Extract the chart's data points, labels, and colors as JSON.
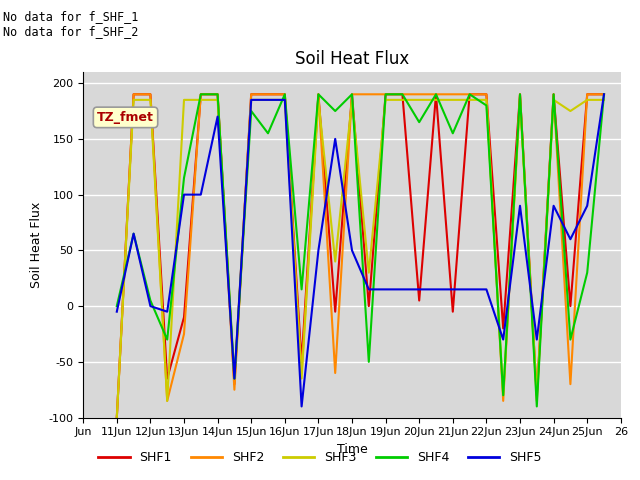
{
  "title": "Soil Heat Flux",
  "xlabel": "Time",
  "ylabel": "Soil Heat Flux",
  "ylim": [
    -100,
    210
  ],
  "yticks": [
    -100,
    -50,
    0,
    50,
    100,
    150,
    200
  ],
  "annotation_text": "No data for f_SHF_1\nNo data for f_SHF_2",
  "legend_label": "TZ_fmet",
  "background_color": "#d8d8d8",
  "series": {
    "SHF1": {
      "color": "#dd0000",
      "x": [
        11,
        11.5,
        12,
        12.5,
        13,
        13.5,
        14,
        14.5,
        15,
        15.5,
        16,
        16.5,
        17,
        17.5,
        18,
        18.5,
        19,
        19.5,
        20,
        20.5,
        21,
        21.5,
        22,
        22.5,
        23,
        23.5,
        24,
        24.5,
        25,
        25.5
      ],
      "y": [
        -100,
        190,
        190,
        -65,
        -10,
        190,
        190,
        -70,
        190,
        190,
        190,
        -50,
        190,
        -5,
        190,
        0,
        190,
        190,
        5,
        190,
        -5,
        190,
        190,
        -20,
        190,
        -80,
        190,
        0,
        190,
        190
      ]
    },
    "SHF2": {
      "color": "#ff8800",
      "x": [
        11,
        11.5,
        12,
        12.5,
        13,
        13.5,
        14,
        14.5,
        15,
        15.5,
        16,
        16.5,
        17,
        17.5,
        18,
        18.5,
        19,
        19.5,
        20,
        20.5,
        21,
        21.5,
        22,
        22.5,
        23,
        23.5,
        24,
        24.5,
        25,
        25.5
      ],
      "y": [
        -100,
        190,
        190,
        -85,
        -25,
        190,
        190,
        -75,
        190,
        190,
        190,
        -60,
        190,
        -60,
        190,
        190,
        190,
        190,
        190,
        190,
        190,
        190,
        190,
        -85,
        190,
        -85,
        190,
        -70,
        190,
        190
      ]
    },
    "SHF3": {
      "color": "#cccc00",
      "x": [
        11,
        11.5,
        12,
        12.5,
        13,
        13.5,
        14,
        14.5,
        15,
        15.5,
        16,
        16.5,
        17,
        17.5,
        18,
        18.5,
        19,
        19.5,
        20,
        20.5,
        21,
        21.5,
        22,
        22.5,
        23,
        23.5,
        24,
        24.5,
        25,
        25.5
      ],
      "y": [
        -100,
        185,
        185,
        -85,
        185,
        185,
        185,
        -65,
        185,
        185,
        185,
        -65,
        185,
        40,
        185,
        30,
        185,
        185,
        185,
        185,
        185,
        185,
        185,
        -80,
        185,
        -80,
        185,
        175,
        185,
        185
      ]
    },
    "SHF4": {
      "color": "#00cc00",
      "x": [
        11,
        11.5,
        12,
        12.5,
        13,
        13.5,
        14,
        14.5,
        15,
        15.5,
        16,
        16.5,
        17,
        17.5,
        18,
        18.5,
        19,
        19.5,
        20,
        20.5,
        21,
        21.5,
        22,
        22.5,
        23,
        23.5,
        24,
        24.5,
        25,
        25.5
      ],
      "y": [
        0,
        65,
        5,
        -30,
        115,
        190,
        190,
        -65,
        175,
        155,
        190,
        15,
        190,
        175,
        190,
        -50,
        190,
        190,
        165,
        190,
        155,
        190,
        180,
        -80,
        190,
        -90,
        190,
        -30,
        30,
        190
      ]
    },
    "SHF5": {
      "color": "#0000dd",
      "x": [
        11,
        11.5,
        12,
        12.5,
        13,
        13.5,
        14,
        14.5,
        15,
        15.5,
        16,
        16.5,
        17,
        17.5,
        18,
        18.5,
        19,
        19.5,
        20,
        20.5,
        21,
        21.5,
        22,
        22.5,
        23,
        23.5,
        24,
        24.5,
        25,
        25.5
      ],
      "y": [
        -5,
        65,
        0,
        -5,
        100,
        100,
        170,
        -65,
        185,
        185,
        185,
        -90,
        50,
        150,
        50,
        15,
        15,
        15,
        15,
        15,
        15,
        15,
        15,
        -30,
        90,
        -30,
        90,
        60,
        90,
        190
      ]
    }
  },
  "xtick_positions": [
    10,
    11,
    12,
    13,
    14,
    15,
    16,
    17,
    18,
    19,
    20,
    21,
    22,
    23,
    24,
    25,
    26
  ],
  "xtick_labels": [
    "Jun",
    "11Jun",
    "12Jun",
    "13Jun",
    "14Jun",
    "15Jun",
    "16Jun",
    "17Jun",
    "18Jun",
    "19Jun",
    "20Jun",
    "21Jun",
    "22Jun",
    "23Jun",
    "24Jun",
    "25Jun",
    "26"
  ],
  "legend_entries": [
    "SHF1",
    "SHF2",
    "SHF3",
    "SHF4",
    "SHF5"
  ],
  "legend_colors": [
    "#dd0000",
    "#ff8800",
    "#cccc00",
    "#00cc00",
    "#0000dd"
  ]
}
